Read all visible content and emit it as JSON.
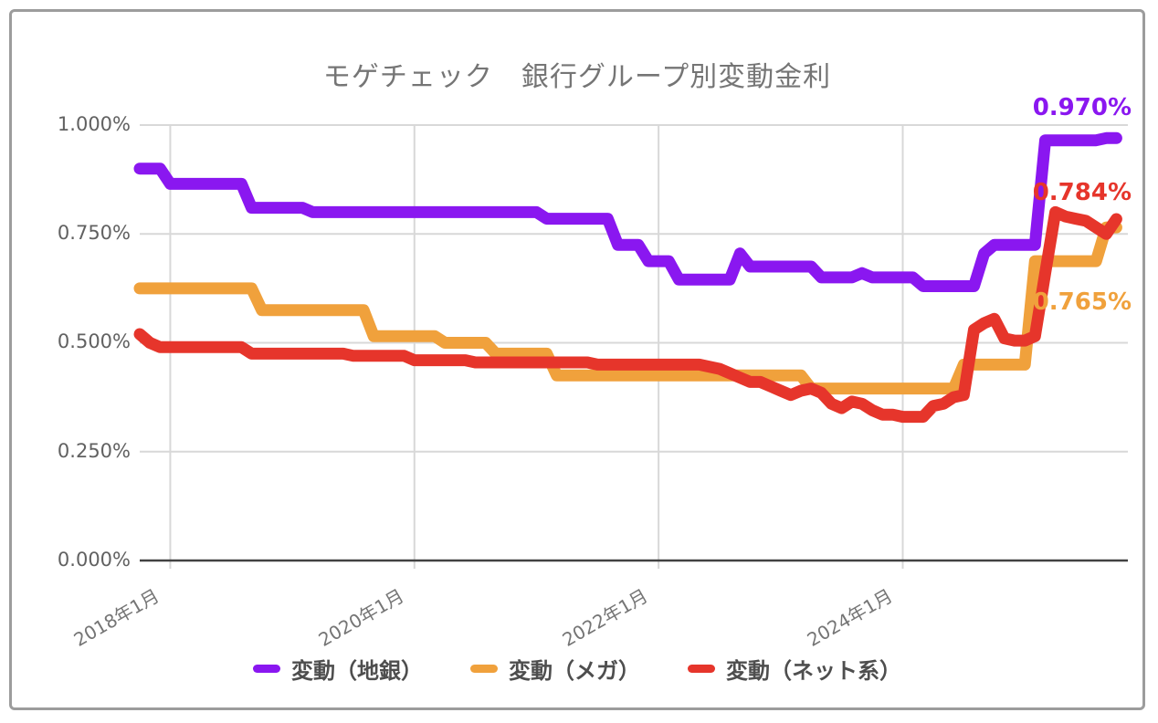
{
  "chart_data": {
    "type": "line",
    "title": "モゲチェック　銀行グループ別変動金利",
    "y_unit": "%",
    "ylim": [
      0,
      1.0
    ],
    "grid": true,
    "legend_position": "bottom",
    "y_ticks_top_down": [
      "1.000%",
      "0.750%",
      "0.500%",
      "0.250%",
      "0.000%"
    ],
    "x_ticks": [
      "2018年1月",
      "2020年1月",
      "2022年1月",
      "2024年1月"
    ],
    "x_tick_month_index": [
      3,
      27,
      51,
      75
    ],
    "x": [
      "2017/10",
      "2017/11",
      "2017/12",
      "2018/01",
      "2018/02",
      "2018/03",
      "2018/04",
      "2018/05",
      "2018/06",
      "2018/07",
      "2018/08",
      "2018/09",
      "2018/10",
      "2018/11",
      "2018/12",
      "2019/01",
      "2019/02",
      "2019/03",
      "2019/04",
      "2019/05",
      "2019/06",
      "2019/07",
      "2019/08",
      "2019/09",
      "2019/10",
      "2019/11",
      "2019/12",
      "2020/01",
      "2020/02",
      "2020/03",
      "2020/04",
      "2020/05",
      "2020/06",
      "2020/07",
      "2020/08",
      "2020/09",
      "2020/10",
      "2020/11",
      "2020/12",
      "2021/01",
      "2021/02",
      "2021/03",
      "2021/04",
      "2021/05",
      "2021/06",
      "2021/07",
      "2021/08",
      "2021/09",
      "2021/10",
      "2021/11",
      "2021/12",
      "2022/01",
      "2022/02",
      "2022/03",
      "2022/04",
      "2022/05",
      "2022/06",
      "2022/07",
      "2022/08",
      "2022/09",
      "2022/10",
      "2022/11",
      "2022/12",
      "2023/01",
      "2023/02",
      "2023/03",
      "2023/04",
      "2023/05",
      "2023/06",
      "2023/07",
      "2023/08",
      "2023/09",
      "2023/10",
      "2023/11",
      "2023/12",
      "2024/01",
      "2024/02",
      "2024/03",
      "2024/04",
      "2024/05",
      "2024/06",
      "2024/07",
      "2024/08",
      "2024/09",
      "2024/10",
      "2024/11",
      "2024/12",
      "2025/01",
      "2025/02",
      "2025/03",
      "2025/04",
      "2025/05",
      "2025/06",
      "2025/07",
      "2025/08",
      "2025/09",
      "2025/10"
    ],
    "series": [
      {
        "name": "変動（地銀）",
        "color": "#8a17f0",
        "end_label": "0.970%",
        "values": [
          0.9,
          0.9,
          0.9,
          0.865,
          0.865,
          0.865,
          0.865,
          0.865,
          0.865,
          0.865,
          0.865,
          0.81,
          0.81,
          0.81,
          0.81,
          0.81,
          0.81,
          0.8,
          0.8,
          0.8,
          0.8,
          0.8,
          0.8,
          0.8,
          0.8,
          0.8,
          0.8,
          0.8,
          0.8,
          0.8,
          0.8,
          0.8,
          0.8,
          0.8,
          0.8,
          0.8,
          0.8,
          0.8,
          0.8,
          0.8,
          0.785,
          0.785,
          0.785,
          0.785,
          0.785,
          0.785,
          0.785,
          0.725,
          0.725,
          0.725,
          0.6875,
          0.6875,
          0.6875,
          0.645,
          0.645,
          0.645,
          0.645,
          0.645,
          0.645,
          0.705,
          0.675,
          0.675,
          0.675,
          0.675,
          0.675,
          0.675,
          0.675,
          0.65,
          0.65,
          0.65,
          0.65,
          0.66,
          0.65,
          0.65,
          0.65,
          0.65,
          0.65,
          0.63,
          0.63,
          0.63,
          0.63,
          0.63,
          0.63,
          0.705,
          0.725,
          0.725,
          0.725,
          0.725,
          0.725,
          0.965,
          0.965,
          0.965,
          0.965,
          0.965,
          0.965,
          0.97,
          0.97
        ]
      },
      {
        "name": "変動（メガ）",
        "color": "#f0a13c",
        "end_label": "0.765%",
        "values": [
          0.625,
          0.625,
          0.625,
          0.625,
          0.625,
          0.625,
          0.625,
          0.625,
          0.625,
          0.625,
          0.625,
          0.625,
          0.575,
          0.575,
          0.575,
          0.575,
          0.575,
          0.575,
          0.575,
          0.575,
          0.575,
          0.575,
          0.575,
          0.515,
          0.515,
          0.515,
          0.515,
          0.515,
          0.515,
          0.515,
          0.5,
          0.5,
          0.5,
          0.5,
          0.5,
          0.475,
          0.475,
          0.475,
          0.475,
          0.475,
          0.475,
          0.425,
          0.425,
          0.425,
          0.425,
          0.425,
          0.425,
          0.425,
          0.425,
          0.425,
          0.425,
          0.425,
          0.425,
          0.425,
          0.425,
          0.425,
          0.425,
          0.425,
          0.425,
          0.425,
          0.425,
          0.425,
          0.425,
          0.425,
          0.425,
          0.425,
          0.395,
          0.395,
          0.395,
          0.395,
          0.395,
          0.395,
          0.395,
          0.395,
          0.395,
          0.395,
          0.395,
          0.395,
          0.395,
          0.395,
          0.395,
          0.45,
          0.45,
          0.45,
          0.45,
          0.45,
          0.45,
          0.45,
          0.6875,
          0.6875,
          0.6875,
          0.6875,
          0.6875,
          0.6875,
          0.6875,
          0.765,
          0.765
        ]
      },
      {
        "name": "変動（ネット系）",
        "color": "#e6352b",
        "end_label": "0.784%",
        "values": [
          0.52,
          0.5,
          0.49,
          0.49,
          0.49,
          0.49,
          0.49,
          0.49,
          0.49,
          0.49,
          0.49,
          0.475,
          0.475,
          0.475,
          0.475,
          0.475,
          0.475,
          0.475,
          0.475,
          0.475,
          0.475,
          0.47,
          0.47,
          0.47,
          0.47,
          0.47,
          0.47,
          0.46,
          0.46,
          0.46,
          0.46,
          0.46,
          0.46,
          0.455,
          0.455,
          0.455,
          0.455,
          0.455,
          0.455,
          0.455,
          0.455,
          0.455,
          0.455,
          0.455,
          0.455,
          0.45,
          0.45,
          0.45,
          0.45,
          0.45,
          0.45,
          0.45,
          0.45,
          0.45,
          0.45,
          0.45,
          0.445,
          0.44,
          0.43,
          0.42,
          0.41,
          0.41,
          0.4,
          0.39,
          0.38,
          0.39,
          0.395,
          0.385,
          0.36,
          0.35,
          0.365,
          0.36,
          0.345,
          0.335,
          0.335,
          0.33,
          0.33,
          0.33,
          0.355,
          0.36,
          0.375,
          0.38,
          0.53,
          0.545,
          0.555,
          0.51,
          0.505,
          0.505,
          0.515,
          0.66,
          0.8,
          0.79,
          0.785,
          0.78,
          0.765,
          0.75,
          0.784
        ]
      }
    ],
    "colors": {
      "grid": "#d8d8d8",
      "axis": "#424242",
      "title_text": "#757575",
      "tick_text": "#616161",
      "legend_text": "#4e4e4e",
      "card_border": "#9c9c9c"
    }
  }
}
